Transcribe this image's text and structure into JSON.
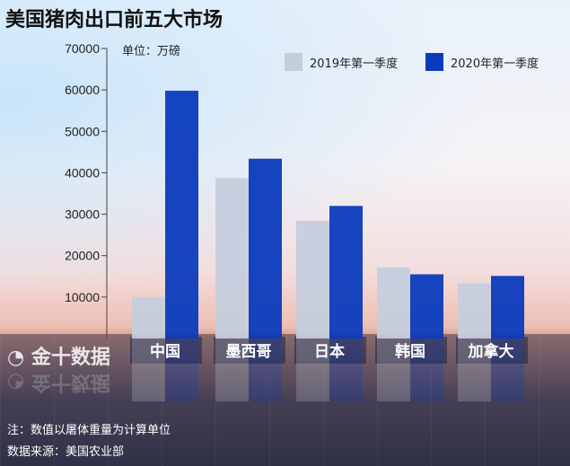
{
  "chart_data": {
    "type": "bar",
    "title": "美国猪肉出口前五大市场",
    "unit_label": "单位：万磅",
    "categories": [
      "中国",
      "墨西哥",
      "日本",
      "韩国",
      "加拿大"
    ],
    "series": [
      {
        "name": "2019年第一季度",
        "color": "#c5cedd",
        "values": [
          10000,
          38700,
          28400,
          17100,
          13300
        ]
      },
      {
        "name": "2020年第一季度",
        "color": "#0b3bbd",
        "values": [
          59800,
          43400,
          32000,
          15500,
          15100
        ]
      }
    ],
    "yticks": [
      10000,
      20000,
      30000,
      40000,
      50000,
      60000,
      70000
    ],
    "ylim": [
      0,
      70000
    ],
    "grid": false,
    "legend": "top-right"
  },
  "notes": {
    "note": "注：数值以屠体重量为计算单位",
    "source": "数据来源：美国农业部"
  },
  "watermark": "金十数据"
}
